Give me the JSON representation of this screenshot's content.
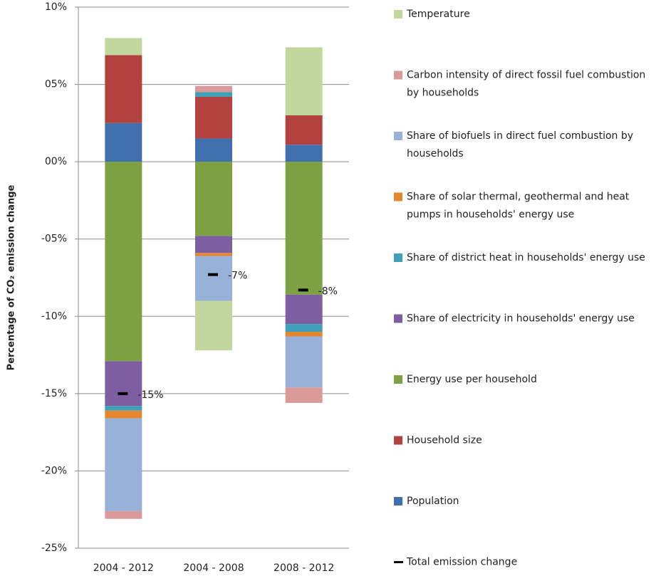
{
  "chart_data": {
    "type": "stacked-bar",
    "y_label": "Percentage of CO₂ emission change",
    "categories": [
      "2004 - 2012",
      "2004 - 2008",
      "2008 - 2012"
    ],
    "series": [
      {
        "name": "Population",
        "color": "#4070ae",
        "values": [
          2.5,
          1.5,
          1.1
        ]
      },
      {
        "name": "Household size",
        "color": "#b3423f",
        "values": [
          4.4,
          2.7,
          1.9
        ]
      },
      {
        "name": "Energy use per household",
        "color": "#7ea143",
        "values": [
          -12.9,
          -4.8,
          -8.6
        ]
      },
      {
        "name": "Share of electricity in households' energy use",
        "color": "#7d5fa1",
        "values": [
          -2.9,
          -1.1,
          -1.9
        ]
      },
      {
        "name": "Share of district heat in households' energy use",
        "color": "#3ea0b9",
        "values": [
          -0.3,
          0.3,
          -0.5
        ]
      },
      {
        "name": "Share of solar thermal, geothermal and heat pumps in households' energy use",
        "color": "#e58630",
        "values": [
          -0.5,
          -0.2,
          -0.3
        ]
      },
      {
        "name": "Share of biofuels in direct fuel combustion by households",
        "color": "#97b1d8",
        "values": [
          -6.0,
          -2.9,
          -3.3
        ]
      },
      {
        "name": "Carbon intensity of direct fossil fuel combustion by households",
        "color": "#d99a99",
        "values": [
          -0.5,
          0.4,
          -1.0
        ]
      },
      {
        "name": "Temperature",
        "color": "#c2d79e",
        "values": [
          1.1,
          -3.2,
          4.4
        ]
      }
    ],
    "total": {
      "name": "Total emission change",
      "color": "#000000",
      "values": [
        -15,
        -7.3,
        -8.3
      ],
      "value_labels": [
        "-15%",
        "-7%",
        "-8%"
      ]
    },
    "ylim": [
      -25,
      10
    ],
    "yticks": [
      {
        "value": -25,
        "label": "-25%"
      },
      {
        "value": -20,
        "label": "-20%"
      },
      {
        "value": -15,
        "label": "-15%"
      },
      {
        "value": -10,
        "label": "-10%"
      },
      {
        "value": -5,
        "label": "-05%"
      },
      {
        "value": 0,
        "label": "00%"
      },
      {
        "value": 5,
        "label": "05%"
      },
      {
        "value": 10,
        "label": "10%"
      }
    ],
    "grid": true
  }
}
